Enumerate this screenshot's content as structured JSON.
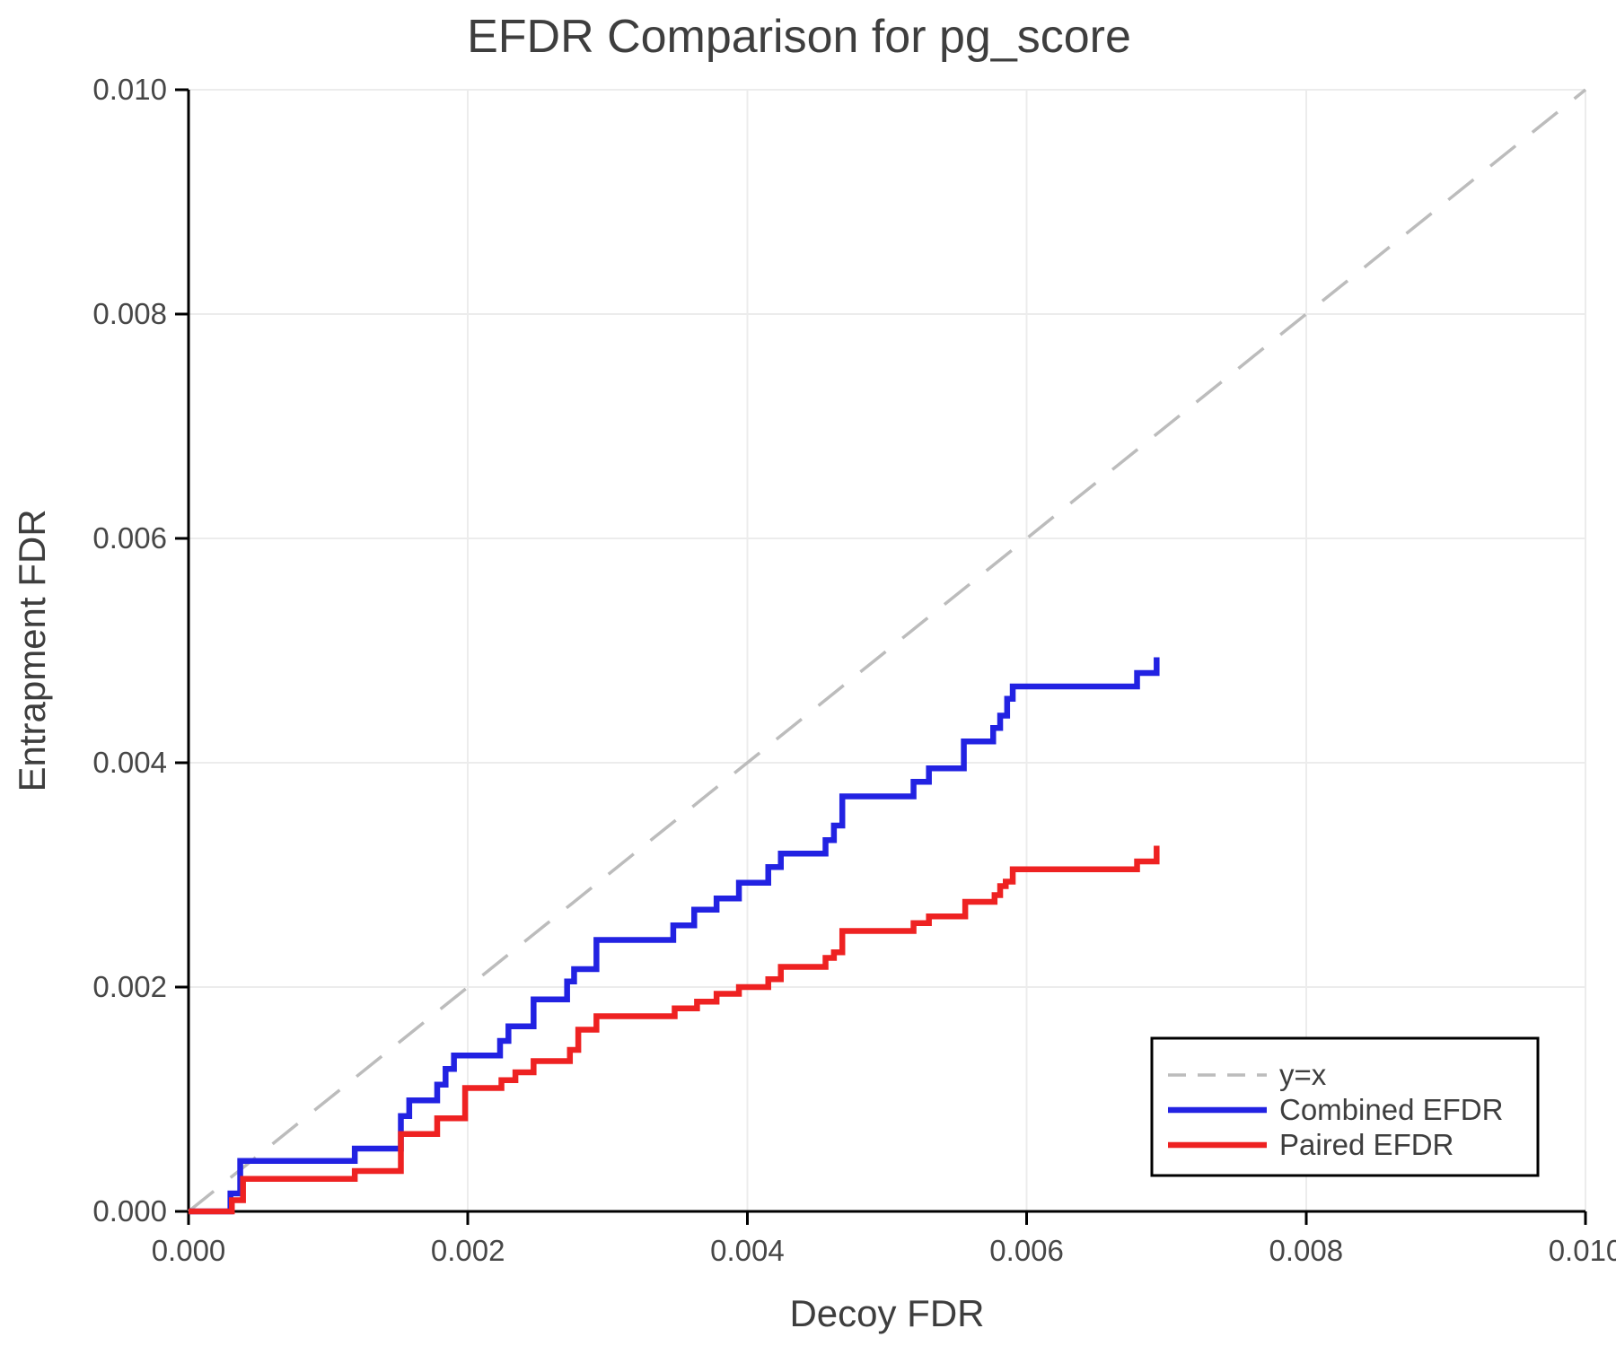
{
  "page": {
    "background": "#ffffff"
  },
  "chart_data": {
    "type": "line",
    "title": "EFDR Comparison for pg_score",
    "xlabel": "Decoy FDR",
    "ylabel": "Entrapment FDR",
    "xlim": [
      0.0,
      0.01
    ],
    "ylim": [
      0.0,
      0.01
    ],
    "grid": true,
    "legend_position": "lower right",
    "x_ticks": {
      "values": [
        0.0,
        0.002,
        0.004,
        0.006,
        0.008,
        0.01
      ],
      "labels": [
        "0.000",
        "0.002",
        "0.004",
        "0.006",
        "0.008",
        "0.010"
      ]
    },
    "y_ticks": {
      "values": [
        0.0,
        0.002,
        0.004,
        0.006,
        0.008,
        0.01
      ],
      "labels": [
        "0.000",
        "0.002",
        "0.004",
        "0.006",
        "0.008",
        "0.010"
      ]
    },
    "series": [
      {
        "name": "y=x",
        "draw": "line",
        "style": "dashed",
        "color": "#bcbcbc",
        "width": 3.5,
        "points": [
          [
            0.0,
            0.0
          ],
          [
            0.01,
            0.01
          ]
        ]
      },
      {
        "name": "Combined EFDR",
        "draw": "step",
        "style": "solid",
        "color": "#2222e2",
        "width": 6.5,
        "points": [
          [
            0.0,
            0.0
          ],
          [
            0.0003,
            0.00016
          ],
          [
            0.00037,
            0.00045
          ],
          [
            0.00119,
            0.00056
          ],
          [
            0.00152,
            0.00085
          ],
          [
            0.00158,
            0.00099
          ],
          [
            0.00178,
            0.00113
          ],
          [
            0.00184,
            0.00127
          ],
          [
            0.0019,
            0.00139
          ],
          [
            0.00223,
            0.00152
          ],
          [
            0.00229,
            0.00165
          ],
          [
            0.00247,
            0.00189
          ],
          [
            0.00271,
            0.00205
          ],
          [
            0.00276,
            0.00216
          ],
          [
            0.00292,
            0.00242
          ],
          [
            0.00347,
            0.00255
          ],
          [
            0.00362,
            0.00269
          ],
          [
            0.00378,
            0.00279
          ],
          [
            0.00394,
            0.00293
          ],
          [
            0.00415,
            0.00307
          ],
          [
            0.00424,
            0.00319
          ],
          [
            0.00456,
            0.00331
          ],
          [
            0.00462,
            0.00344
          ],
          [
            0.00468,
            0.0037
          ],
          [
            0.00519,
            0.00383
          ],
          [
            0.0053,
            0.00395
          ],
          [
            0.00555,
            0.00419
          ],
          [
            0.00576,
            0.00431
          ],
          [
            0.00581,
            0.00442
          ],
          [
            0.00586,
            0.00457
          ],
          [
            0.0059,
            0.00468
          ],
          [
            0.00679,
            0.0048
          ],
          [
            0.00693,
            0.00494
          ]
        ]
      },
      {
        "name": "Paired EFDR",
        "draw": "step",
        "style": "solid",
        "color": "#ee2222",
        "width": 6.5,
        "points": [
          [
            0.0,
            0.0
          ],
          [
            0.00031,
            0.0001
          ],
          [
            0.00039,
            0.00029
          ],
          [
            0.00119,
            0.00036
          ],
          [
            0.00152,
            0.00069
          ],
          [
            0.00178,
            0.00083
          ],
          [
            0.00198,
            0.0011
          ],
          [
            0.00224,
            0.00117
          ],
          [
            0.00234,
            0.00124
          ],
          [
            0.00247,
            0.00134
          ],
          [
            0.00273,
            0.00144
          ],
          [
            0.00279,
            0.00162
          ],
          [
            0.00292,
            0.00174
          ],
          [
            0.00348,
            0.00181
          ],
          [
            0.00364,
            0.00187
          ],
          [
            0.00378,
            0.00194
          ],
          [
            0.00394,
            0.002
          ],
          [
            0.00415,
            0.00207
          ],
          [
            0.00424,
            0.00218
          ],
          [
            0.00456,
            0.00226
          ],
          [
            0.00462,
            0.00231
          ],
          [
            0.00468,
            0.0025
          ],
          [
            0.00519,
            0.00257
          ],
          [
            0.0053,
            0.00263
          ],
          [
            0.00556,
            0.00276
          ],
          [
            0.00577,
            0.00282
          ],
          [
            0.00581,
            0.0029
          ],
          [
            0.00585,
            0.00294
          ],
          [
            0.0059,
            0.00305
          ],
          [
            0.00679,
            0.00312
          ],
          [
            0.00693,
            0.00326
          ]
        ]
      }
    ]
  }
}
